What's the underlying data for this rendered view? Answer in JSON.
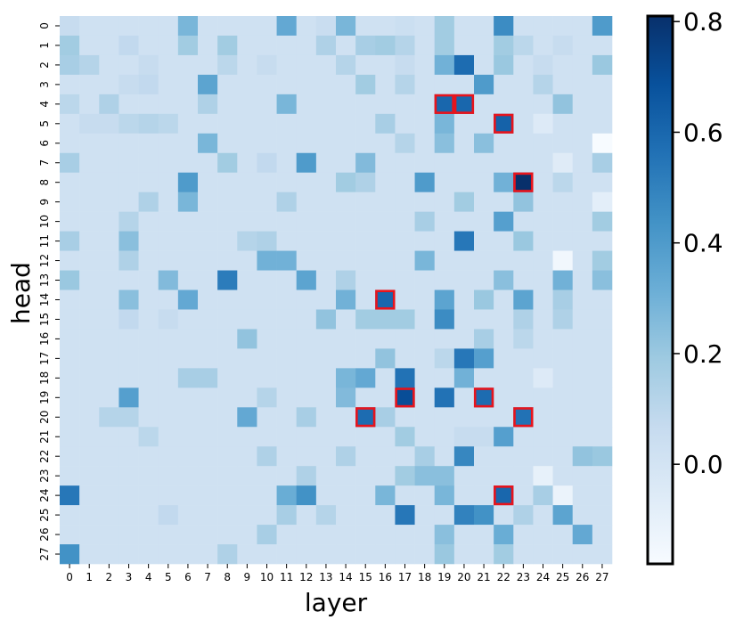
{
  "chart_data": {
    "type": "heatmap",
    "title": "",
    "xlabel": "layer",
    "ylabel": "head",
    "x_categories": [
      "0",
      "1",
      "2",
      "3",
      "4",
      "5",
      "6",
      "7",
      "8",
      "9",
      "10",
      "11",
      "12",
      "13",
      "14",
      "15",
      "16",
      "17",
      "18",
      "19",
      "20",
      "21",
      "22",
      "23",
      "24",
      "25",
      "26",
      "27"
    ],
    "y_categories": [
      "0",
      "1",
      "2",
      "3",
      "4",
      "5",
      "6",
      "7",
      "8",
      "9",
      "10",
      "11",
      "12",
      "13",
      "14",
      "15",
      "16",
      "17",
      "18",
      "19",
      "20",
      "21",
      "22",
      "23",
      "24",
      "25",
      "26",
      "27"
    ],
    "colormap": "Blues",
    "color_range": [
      -0.18,
      0.81
    ],
    "colorbar_ticks": [
      {
        "value": 0.0,
        "label": "0.0"
      },
      {
        "value": 0.2,
        "label": "0.2"
      },
      {
        "value": 0.4,
        "label": "0.4"
      },
      {
        "value": 0.6,
        "label": "0.6"
      },
      {
        "value": 0.8,
        "label": "0.8"
      }
    ],
    "default_value": 0.02,
    "cells": [
      [
        0,
        0,
        0.06
      ],
      [
        0,
        6,
        0.28
      ],
      [
        0,
        11,
        0.34
      ],
      [
        0,
        14,
        0.28
      ],
      [
        0,
        19,
        0.18
      ],
      [
        0,
        22,
        0.46
      ],
      [
        0,
        27,
        0.4
      ],
      [
        0,
        17,
        0.04
      ],
      [
        0,
        13,
        0.05
      ],
      [
        1,
        0,
        0.18
      ],
      [
        1,
        3,
        0.08
      ],
      [
        1,
        6,
        0.18
      ],
      [
        1,
        8,
        0.18
      ],
      [
        1,
        13,
        0.14
      ],
      [
        1,
        15,
        0.16
      ],
      [
        1,
        16,
        0.18
      ],
      [
        1,
        17,
        0.12
      ],
      [
        1,
        19,
        0.18
      ],
      [
        1,
        22,
        0.18
      ],
      [
        1,
        23,
        0.1
      ],
      [
        1,
        25,
        0.06
      ],
      [
        2,
        0,
        0.16
      ],
      [
        2,
        1,
        0.12
      ],
      [
        2,
        4,
        0.06
      ],
      [
        2,
        8,
        0.1
      ],
      [
        2,
        10,
        0.06
      ],
      [
        2,
        14,
        0.12
      ],
      [
        2,
        17,
        0.06
      ],
      [
        2,
        19,
        0.3
      ],
      [
        2,
        20,
        0.58
      ],
      [
        2,
        22,
        0.2
      ],
      [
        2,
        24,
        0.06
      ],
      [
        2,
        27,
        0.2
      ],
      [
        3,
        3,
        0.06
      ],
      [
        3,
        4,
        0.08
      ],
      [
        3,
        7,
        0.36
      ],
      [
        3,
        15,
        0.18
      ],
      [
        3,
        17,
        0.12
      ],
      [
        3,
        21,
        0.4
      ],
      [
        3,
        24,
        0.12
      ],
      [
        4,
        0,
        0.1
      ],
      [
        4,
        2,
        0.14
      ],
      [
        4,
        7,
        0.14
      ],
      [
        4,
        11,
        0.28
      ],
      [
        4,
        19,
        0.6
      ],
      [
        4,
        20,
        0.6
      ],
      [
        4,
        25,
        0.22
      ],
      [
        5,
        1,
        0.06
      ],
      [
        5,
        2,
        0.06
      ],
      [
        5,
        3,
        0.1
      ],
      [
        5,
        4,
        0.12
      ],
      [
        5,
        5,
        0.1
      ],
      [
        5,
        16,
        0.16
      ],
      [
        5,
        19,
        0.28
      ],
      [
        5,
        22,
        0.62
      ],
      [
        5,
        24,
        -0.05
      ],
      [
        6,
        7,
        0.28
      ],
      [
        6,
        17,
        0.12
      ],
      [
        6,
        19,
        0.24
      ],
      [
        6,
        21,
        0.24
      ],
      [
        6,
        27,
        -0.18
      ],
      [
        7,
        0,
        0.16
      ],
      [
        7,
        8,
        0.18
      ],
      [
        7,
        12,
        0.4
      ],
      [
        7,
        15,
        0.26
      ],
      [
        7,
        10,
        0.08
      ],
      [
        7,
        25,
        -0.06
      ],
      [
        7,
        27,
        0.16
      ],
      [
        8,
        6,
        0.4
      ],
      [
        8,
        14,
        0.18
      ],
      [
        8,
        15,
        0.14
      ],
      [
        8,
        18,
        0.4
      ],
      [
        8,
        22,
        0.3
      ],
      [
        8,
        23,
        0.81
      ],
      [
        8,
        25,
        0.1
      ],
      [
        9,
        6,
        0.28
      ],
      [
        9,
        4,
        0.14
      ],
      [
        9,
        11,
        0.14
      ],
      [
        9,
        20,
        0.18
      ],
      [
        9,
        23,
        0.22
      ],
      [
        9,
        27,
        -0.08
      ],
      [
        10,
        3,
        0.12
      ],
      [
        10,
        18,
        0.16
      ],
      [
        10,
        22,
        0.38
      ],
      [
        10,
        27,
        0.18
      ],
      [
        11,
        0,
        0.16
      ],
      [
        11,
        3,
        0.24
      ],
      [
        11,
        9,
        0.12
      ],
      [
        11,
        10,
        0.14
      ],
      [
        11,
        20,
        0.54
      ],
      [
        11,
        23,
        0.2
      ],
      [
        12,
        3,
        0.14
      ],
      [
        12,
        10,
        0.3
      ],
      [
        12,
        11,
        0.3
      ],
      [
        12,
        18,
        0.28
      ],
      [
        12,
        25,
        -0.15
      ],
      [
        12,
        27,
        0.18
      ],
      [
        13,
        0,
        0.2
      ],
      [
        13,
        5,
        0.26
      ],
      [
        13,
        8,
        0.52
      ],
      [
        13,
        12,
        0.36
      ],
      [
        13,
        14,
        0.14
      ],
      [
        13,
        22,
        0.24
      ],
      [
        13,
        25,
        0.3
      ],
      [
        13,
        27,
        0.24
      ],
      [
        14,
        3,
        0.24
      ],
      [
        14,
        6,
        0.34
      ],
      [
        14,
        14,
        0.3
      ],
      [
        14,
        16,
        0.6
      ],
      [
        14,
        19,
        0.36
      ],
      [
        14,
        21,
        0.2
      ],
      [
        14,
        23,
        0.36
      ],
      [
        14,
        25,
        0.16
      ],
      [
        15,
        3,
        0.08
      ],
      [
        15,
        5,
        0.06
      ],
      [
        15,
        13,
        0.22
      ],
      [
        15,
        15,
        0.18
      ],
      [
        15,
        16,
        0.18
      ],
      [
        15,
        17,
        0.18
      ],
      [
        15,
        19,
        0.46
      ],
      [
        15,
        23,
        0.14
      ],
      [
        15,
        25,
        0.14
      ],
      [
        16,
        9,
        0.22
      ],
      [
        16,
        21,
        0.16
      ],
      [
        16,
        23,
        0.1
      ],
      [
        17,
        16,
        0.22
      ],
      [
        17,
        19,
        0.1
      ],
      [
        17,
        20,
        0.54
      ],
      [
        17,
        21,
        0.38
      ],
      [
        18,
        6,
        0.16
      ],
      [
        18,
        7,
        0.16
      ],
      [
        18,
        14,
        0.28
      ],
      [
        18,
        15,
        0.34
      ],
      [
        18,
        17,
        0.56
      ],
      [
        18,
        20,
        0.3
      ],
      [
        18,
        24,
        -0.05
      ],
      [
        19,
        3,
        0.38
      ],
      [
        19,
        10,
        0.12
      ],
      [
        19,
        14,
        0.26
      ],
      [
        19,
        17,
        0.7
      ],
      [
        19,
        19,
        0.56
      ],
      [
        19,
        21,
        0.58
      ],
      [
        20,
        2,
        0.12
      ],
      [
        20,
        3,
        0.12
      ],
      [
        20,
        9,
        0.34
      ],
      [
        20,
        12,
        0.16
      ],
      [
        20,
        15,
        0.58
      ],
      [
        20,
        16,
        0.16
      ],
      [
        20,
        23,
        0.56
      ],
      [
        21,
        4,
        0.1
      ],
      [
        21,
        17,
        0.18
      ],
      [
        21,
        22,
        0.38
      ],
      [
        21,
        20,
        0.06
      ],
      [
        21,
        21,
        0.06
      ],
      [
        22,
        10,
        0.14
      ],
      [
        22,
        14,
        0.14
      ],
      [
        22,
        18,
        0.16
      ],
      [
        22,
        20,
        0.48
      ],
      [
        22,
        26,
        0.22
      ],
      [
        22,
        27,
        0.2
      ],
      [
        23,
        12,
        0.14
      ],
      [
        23,
        17,
        0.18
      ],
      [
        23,
        18,
        0.24
      ],
      [
        23,
        19,
        0.24
      ],
      [
        23,
        24,
        -0.1
      ],
      [
        24,
        0,
        0.54
      ],
      [
        24,
        11,
        0.32
      ],
      [
        24,
        12,
        0.44
      ],
      [
        24,
        16,
        0.28
      ],
      [
        24,
        19,
        0.28
      ],
      [
        24,
        22,
        0.6
      ],
      [
        24,
        24,
        0.16
      ],
      [
        24,
        25,
        -0.12
      ],
      [
        25,
        5,
        0.08
      ],
      [
        25,
        11,
        0.16
      ],
      [
        25,
        13,
        0.12
      ],
      [
        25,
        17,
        0.54
      ],
      [
        25,
        20,
        0.5
      ],
      [
        25,
        21,
        0.44
      ],
      [
        25,
        23,
        0.14
      ],
      [
        25,
        25,
        0.36
      ],
      [
        26,
        10,
        0.16
      ],
      [
        26,
        19,
        0.24
      ],
      [
        26,
        22,
        0.32
      ],
      [
        26,
        26,
        0.34
      ],
      [
        27,
        0,
        0.44
      ],
      [
        27,
        8,
        0.14
      ],
      [
        27,
        19,
        0.2
      ],
      [
        27,
        22,
        0.18
      ]
    ],
    "highlighted_cells": [
      [
        4,
        19
      ],
      [
        4,
        20
      ],
      [
        5,
        22
      ],
      [
        8,
        23
      ],
      [
        14,
        16
      ],
      [
        19,
        17
      ],
      [
        19,
        21
      ],
      [
        20,
        15
      ],
      [
        20,
        23
      ],
      [
        24,
        22
      ]
    ],
    "highlight_color": "#e8141c",
    "colorbar_position": "right"
  }
}
